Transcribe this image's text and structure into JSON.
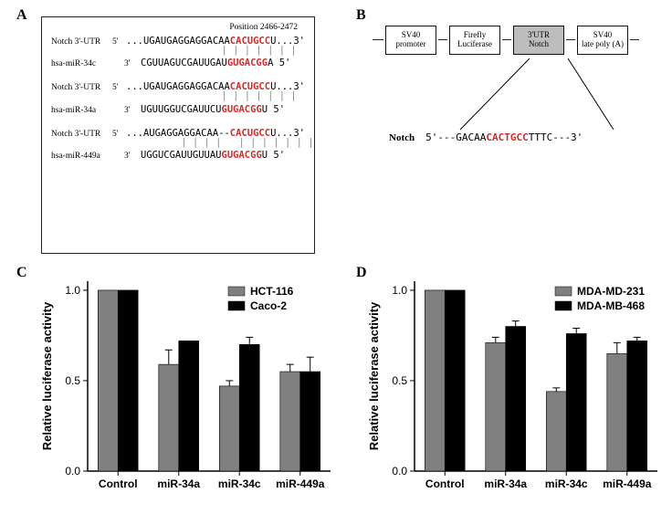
{
  "labels": {
    "A": "A",
    "B": "B",
    "C": "C",
    "D": "D"
  },
  "panelA": {
    "position_header": "Position 2466-2472",
    "pairs": [
      {
        "top_label": "Notch 3'-UTR",
        "top_5p": "5'",
        "top_prefix": "...UGAUGAGGAGGACAA",
        "top_red": "CACUGCC",
        "top_suffix": "U...3'",
        "match": "              | | | | | | |",
        "bot_label": "hsa-miR-34c",
        "bot_5p": "3'",
        "bot_prefix": "CGUUAGUCGAUUGAU",
        "bot_red": "GUGACGG",
        "bot_suffix": "A 5'"
      },
      {
        "top_label": "Notch 3'-UTR",
        "top_5p": "5'",
        "top_prefix": "...UGAUGAGGAGGACAA",
        "top_red": "CACUGCC",
        "top_suffix": "U...3'",
        "match": "              | | | | | | |",
        "bot_label": "hsa-miR-34a",
        "bot_5p": "3'",
        "bot_prefix": "UGUUGGUCGAUUCU",
        "bot_red": "GUGACGG",
        "bot_suffix": "U 5'"
      },
      {
        "top_label": "Notch 3'-UTR",
        "top_5p": "5'",
        "top_prefix": "...AUGAGGAGGACAA--",
        "top_red": "CACUGCC",
        "top_suffix": "U...3'",
        "match": "       | | | |   | | | | | | |",
        "bot_label": "hsa-miR-449a",
        "bot_5p": "3'",
        "bot_prefix": "UGGUCGAUUGUUAU",
        "bot_red": "GUGACGG",
        "bot_suffix": "U 5'"
      }
    ]
  },
  "panelB": {
    "boxes": [
      "SV40\npromoter",
      "Firefly\nLuciferase",
      "3'UTR\nNotch",
      "SV40\nlate poly (A)"
    ],
    "highlight_index": 2,
    "notch_label": "Notch",
    "notch_seq_prefix": "5'---GACAA",
    "notch_seq_red": "CACTGCC",
    "notch_seq_suffix": "TTTC---3'"
  },
  "chartC": {
    "type": "bar",
    "y_label": "Relative luciferase activity",
    "ylim": [
      0,
      1.05
    ],
    "ytick_step": 0.5,
    "yticks": [
      0.0,
      0.5,
      1.0
    ],
    "categories": [
      "Control",
      "miR-34a",
      "miR-34c",
      "miR-449a"
    ],
    "series": [
      {
        "name": "HCT-116",
        "color": "#808080",
        "values": [
          1.0,
          0.59,
          0.47,
          0.55
        ],
        "errors": [
          0,
          0.08,
          0.03,
          0.04
        ]
      },
      {
        "name": "Caco-2",
        "color": "#000000",
        "values": [
          1.0,
          0.72,
          0.7,
          0.55
        ],
        "errors": [
          0,
          0.0,
          0.04,
          0.08
        ]
      }
    ],
    "bar_width": 0.33,
    "background": "#ffffff"
  },
  "chartD": {
    "type": "bar",
    "y_label": "Relative luciferase activity",
    "ylim": [
      0,
      1.05
    ],
    "ytick_step": 0.5,
    "yticks": [
      0.0,
      0.5,
      1.0
    ],
    "categories": [
      "Control",
      "miR-34a",
      "miR-34c",
      "miR-449a"
    ],
    "series": [
      {
        "name": "MDA-MD-231",
        "color": "#808080",
        "values": [
          1.0,
          0.71,
          0.44,
          0.65
        ],
        "errors": [
          0,
          0.03,
          0.02,
          0.06
        ]
      },
      {
        "name": "MDA-MB-468",
        "color": "#000000",
        "values": [
          1.0,
          0.8,
          0.76,
          0.72
        ],
        "errors": [
          0,
          0.03,
          0.03,
          0.02
        ]
      }
    ],
    "bar_width": 0.33,
    "background": "#ffffff"
  }
}
